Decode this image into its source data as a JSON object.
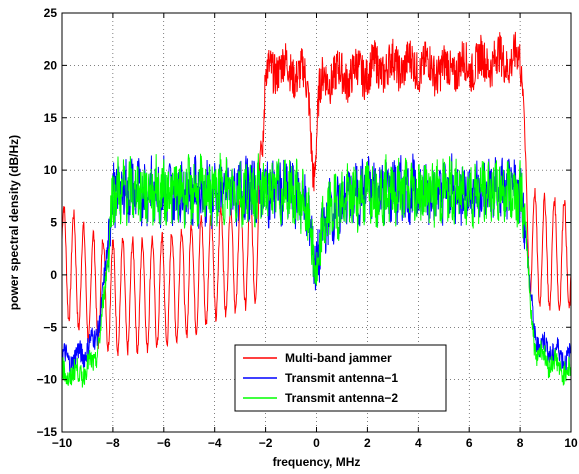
{
  "chart_data": {
    "type": "line",
    "xlabel": "frequency, MHz",
    "ylabel": "power spectral density (dB/Hz)",
    "xlim": [
      -10,
      10
    ],
    "ylim": [
      -15,
      25
    ],
    "xticks": [
      -10,
      -8,
      -6,
      -4,
      -2,
      0,
      2,
      4,
      6,
      8,
      10
    ],
    "yticks": [
      -15,
      -10,
      -5,
      0,
      5,
      10,
      15,
      20,
      25
    ],
    "grid": true,
    "legend_position": "bottom-center",
    "colors": {
      "jammer": "#ff0000",
      "ant1": "#0000ff",
      "ant2": "#00ff00"
    },
    "series": [
      {
        "name": "Multi-band jammer",
        "color": "#ff0000",
        "x": [
          -10,
          -9.5,
          -9,
          -8.5,
          -8,
          -7,
          -6,
          -5,
          -4,
          -3,
          -2.3,
          -2.1,
          -2.0,
          -1.5,
          -1.0,
          -0.5,
          -0.3,
          -0.1,
          0.1,
          0.3,
          1.0,
          2.0,
          3.0,
          4.0,
          5.0,
          6.0,
          7.0,
          8.0,
          8.1,
          8.2,
          8.4,
          9.0,
          10
        ],
        "y": [
          1.5,
          0.5,
          -1,
          -1.5,
          -2,
          -2,
          -1.5,
          -0.5,
          1,
          2,
          3,
          12,
          19,
          20,
          19.5,
          19,
          17,
          9,
          17,
          19,
          19,
          19.5,
          20,
          20,
          19.5,
          20,
          20.5,
          20.5,
          17,
          7,
          3,
          2,
          2
        ]
      },
      {
        "name": "Transmit antenna−1",
        "color": "#0000ff",
        "x": [
          -10,
          -9.5,
          -9,
          -8.7,
          -8.5,
          -8.3,
          -8.0,
          -7.0,
          -6.0,
          -5.0,
          -4.0,
          -3.0,
          -2.0,
          -1.0,
          -0.5,
          -0.2,
          0.0,
          0.2,
          0.5,
          1.0,
          2.0,
          3.0,
          4.0,
          5.0,
          6.0,
          7.0,
          8.0,
          8.2,
          8.4,
          8.6,
          9.0,
          10
        ],
        "y": [
          -8,
          -8,
          -7,
          -6,
          -4,
          0,
          8,
          8,
          8,
          8,
          8,
          8,
          8,
          8,
          7,
          4,
          0,
          4,
          6,
          7,
          8,
          8,
          8,
          8,
          8,
          8,
          8,
          5,
          -2,
          -6,
          -7,
          -8
        ]
      },
      {
        "name": "Transmit antenna−2",
        "color": "#00ff00",
        "x": [
          -10,
          -9.5,
          -9,
          -8.7,
          -8.5,
          -8.3,
          -8.0,
          -7.0,
          -6.0,
          -5.0,
          -4.0,
          -3.0,
          -2.0,
          -1.0,
          -0.5,
          -0.2,
          0.0,
          0.2,
          0.5,
          1.0,
          2.0,
          3.0,
          4.0,
          5.0,
          6.0,
          7.0,
          8.0,
          8.2,
          8.4,
          8.6,
          9.0,
          10
        ],
        "y": [
          -9.5,
          -9.5,
          -9,
          -8,
          -6,
          -1,
          8,
          8,
          8,
          8,
          8,
          8,
          8,
          8,
          7,
          4,
          -1,
          4,
          6,
          7,
          8,
          8,
          8,
          8,
          8,
          8,
          8,
          5,
          -3,
          -7,
          -8,
          -9.5
        ]
      }
    ]
  }
}
